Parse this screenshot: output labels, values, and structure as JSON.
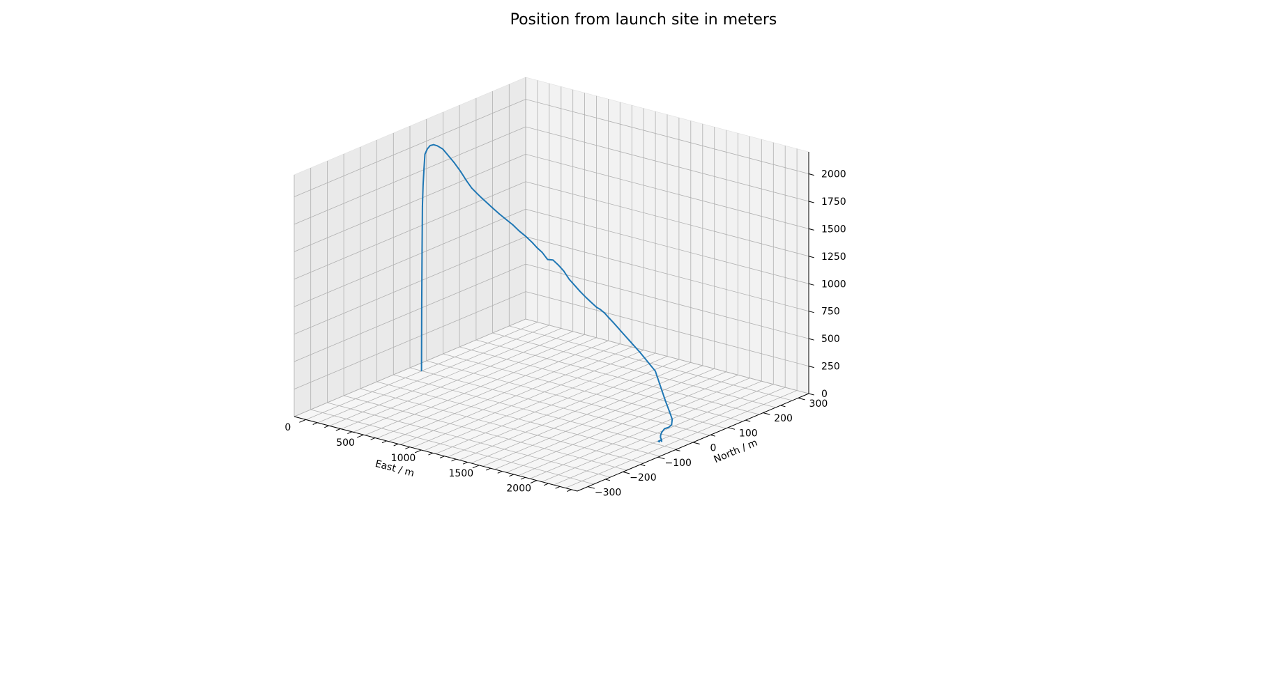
{
  "chart_data": {
    "type": "line",
    "projection": "3d",
    "title": "Position from launch site in meters",
    "xlabel": "East / m",
    "ylabel": "North / m",
    "zlabel": "",
    "xlim": [
      -100,
      2350
    ],
    "ylim": [
      -330,
      330
    ],
    "zlim": [
      0,
      2200
    ],
    "xticks": [
      0,
      500,
      1000,
      1500,
      2000
    ],
    "yticks": [
      -300,
      -200,
      -100,
      0,
      100,
      200,
      300
    ],
    "zticks": [
      0,
      250,
      500,
      750,
      1000,
      1250,
      1500,
      1750,
      2000
    ],
    "grid": true,
    "pane_color": "#f2f2f2",
    "series": [
      {
        "color": "#1f77b4",
        "x": [
          0,
          2,
          5,
          8,
          14,
          22,
          30,
          45,
          60,
          80,
          100,
          130,
          160,
          200,
          240,
          280,
          320,
          360,
          400,
          450,
          500,
          560,
          620,
          680,
          740,
          800,
          860,
          900,
          950,
          1000,
          1050,
          1100,
          1150,
          1200,
          1250,
          1300,
          1350,
          1400,
          1450,
          1480,
          1520,
          1560,
          1600,
          1650,
          1700,
          1750,
          1800,
          1850,
          1900,
          1950,
          2000,
          2050,
          2100,
          2140,
          2170,
          2180,
          2170,
          2150,
          2140,
          2145,
          2160,
          2175,
          2185,
          2170,
          2160,
          2175,
          2165
        ],
        "y": [
          0,
          0,
          0,
          0,
          0,
          0,
          0,
          2,
          5,
          8,
          12,
          18,
          22,
          28,
          32,
          36,
          38,
          40,
          40,
          39,
          38,
          38,
          37,
          36,
          35,
          34,
          33,
          32,
          31,
          30,
          29,
          28,
          27,
          26,
          25,
          24,
          24,
          23,
          22,
          22,
          21,
          20,
          19,
          18,
          17,
          16,
          15,
          14,
          12,
          10,
          8,
          6,
          4,
          2,
          0,
          -5,
          -10,
          -15,
          -20,
          -25,
          -30,
          -32,
          -35,
          -33,
          -36,
          -38,
          -36
        ],
        "z": [
          0,
          600,
          1100,
          1500,
          1700,
          1850,
          1980,
          2030,
          2060,
          2070,
          2060,
          2030,
          1980,
          1910,
          1840,
          1760,
          1700,
          1660,
          1630,
          1600,
          1570,
          1530,
          1500,
          1470,
          1430,
          1400,
          1360,
          1330,
          1300,
          1250,
          1260,
          1230,
          1190,
          1130,
          1090,
          1050,
          1010,
          980,
          950,
          940,
          920,
          890,
          860,
          820,
          780,
          740,
          700,
          660,
          620,
          580,
          540,
          420,
          300,
          220,
          160,
          120,
          100,
          90,
          60,
          40,
          30,
          20,
          10,
          15,
          5,
          8,
          3
        ]
      }
    ]
  }
}
